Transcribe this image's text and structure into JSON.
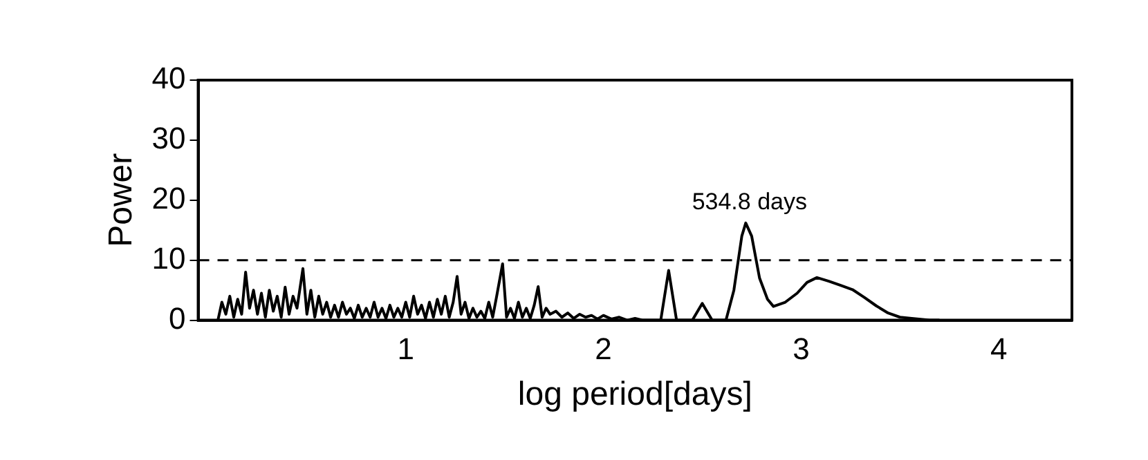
{
  "chart_data": {
    "type": "line",
    "xlabel": "log period[days]",
    "ylabel": "Power",
    "marker": "none",
    "line_style": "solid",
    "xlim": [
      -0.05,
      4.37
    ],
    "xticks": [
      1,
      2,
      3,
      4
    ],
    "ylim": [
      0,
      40
    ],
    "yticks": [
      0,
      10,
      20,
      30,
      40
    ],
    "ref_lines": [
      {
        "axis": "y",
        "value": 10,
        "line_style": "dashed",
        "color": "#000000"
      }
    ],
    "annotations": [
      {
        "text": "534.8 days",
        "x": 2.728,
        "y": 16.2
      }
    ],
    "series": [
      {
        "color": "#000000",
        "x": [
          0.05,
          0.07,
          0.09,
          0.11,
          0.13,
          0.15,
          0.17,
          0.19,
          0.21,
          0.23,
          0.25,
          0.27,
          0.29,
          0.31,
          0.33,
          0.35,
          0.37,
          0.39,
          0.41,
          0.43,
          0.45,
          0.48,
          0.5,
          0.52,
          0.54,
          0.56,
          0.58,
          0.6,
          0.62,
          0.64,
          0.66,
          0.68,
          0.7,
          0.72,
          0.74,
          0.76,
          0.78,
          0.8,
          0.82,
          0.84,
          0.86,
          0.88,
          0.9,
          0.92,
          0.94,
          0.96,
          0.98,
          1.0,
          1.02,
          1.04,
          1.06,
          1.08,
          1.1,
          1.12,
          1.14,
          1.16,
          1.18,
          1.2,
          1.22,
          1.24,
          1.26,
          1.28,
          1.3,
          1.32,
          1.34,
          1.36,
          1.38,
          1.4,
          1.42,
          1.44,
          1.46,
          1.49,
          1.51,
          1.53,
          1.55,
          1.57,
          1.59,
          1.61,
          1.63,
          1.65,
          1.67,
          1.69,
          1.71,
          1.73,
          1.76,
          1.79,
          1.82,
          1.85,
          1.88,
          1.91,
          1.94,
          1.97,
          2.0,
          2.04,
          2.08,
          2.12,
          2.16,
          2.2,
          2.25,
          2.29,
          2.33,
          2.37,
          2.45,
          2.5,
          2.55,
          2.62,
          2.66,
          2.7,
          2.72,
          2.75,
          2.79,
          2.83,
          2.86,
          2.92,
          2.98,
          3.03,
          3.08,
          3.14,
          3.2,
          3.26,
          3.32,
          3.38,
          3.44,
          3.5,
          3.56,
          3.65,
          3.7
        ],
        "values": [
          0,
          3,
          1,
          4,
          0.5,
          3.5,
          1,
          8,
          2,
          5,
          1,
          4.5,
          0.5,
          5,
          1.5,
          4,
          0.5,
          5.5,
          1,
          4,
          2,
          8.6,
          1,
          5,
          0.5,
          4,
          1,
          3,
          0.5,
          2.5,
          0.5,
          3,
          1,
          2,
          0.3,
          2.5,
          0.5,
          2,
          0.5,
          3,
          0.5,
          2,
          0.3,
          2.5,
          0.5,
          2,
          0.5,
          3,
          0.5,
          4,
          1,
          2.5,
          0.3,
          3,
          0.5,
          3.5,
          1,
          4,
          0.5,
          3,
          7.3,
          1,
          3,
          0.3,
          2,
          0.5,
          1.5,
          0.3,
          3,
          0.5,
          4,
          9.4,
          0.5,
          2,
          0.3,
          3,
          0.5,
          2,
          0.3,
          2.5,
          5.6,
          0.5,
          2,
          1,
          1.5,
          0.5,
          1.2,
          0.3,
          1,
          0.5,
          0.8,
          0.2,
          0.8,
          0.2,
          0.5,
          0,
          0.3,
          0,
          0,
          0,
          8.3,
          0,
          0,
          2.8,
          0,
          0,
          5,
          14,
          16.2,
          14,
          7,
          3.5,
          2.3,
          3,
          4.5,
          6.3,
          7.1,
          6.5,
          5.8,
          5.1,
          3.8,
          2.4,
          1.2,
          0.5,
          0.3,
          0,
          0
        ]
      }
    ]
  }
}
